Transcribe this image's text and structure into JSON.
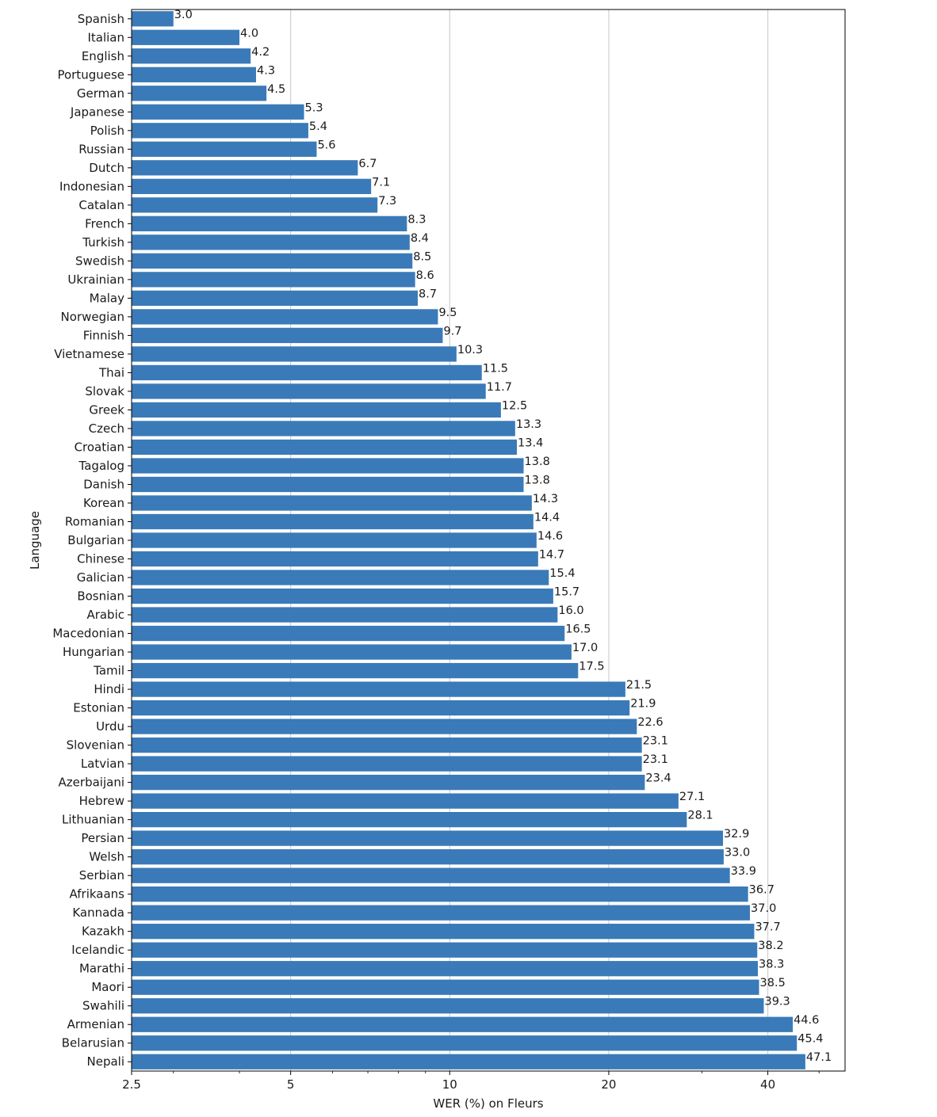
{
  "chart_data": {
    "type": "bar",
    "orientation": "horizontal",
    "xscale": "log",
    "xlabel": "WER (%) on Fleurs",
    "ylabel": "Language",
    "xlim": [
      2.5,
      56
    ],
    "xticks": [
      2.5,
      5,
      10,
      20,
      40
    ],
    "xtick_labels": [
      "2.5",
      "5",
      "10",
      "20",
      "40"
    ],
    "grid": "vertical major gridlines",
    "bar_color": "#3a7ab8",
    "categories": [
      "Spanish",
      "Italian",
      "English",
      "Portuguese",
      "German",
      "Japanese",
      "Polish",
      "Russian",
      "Dutch",
      "Indonesian",
      "Catalan",
      "French",
      "Turkish",
      "Swedish",
      "Ukrainian",
      "Malay",
      "Norwegian",
      "Finnish",
      "Vietnamese",
      "Thai",
      "Slovak",
      "Greek",
      "Czech",
      "Croatian",
      "Tagalog",
      "Danish",
      "Korean",
      "Romanian",
      "Bulgarian",
      "Chinese",
      "Galician",
      "Bosnian",
      "Arabic",
      "Macedonian",
      "Hungarian",
      "Tamil",
      "Hindi",
      "Estonian",
      "Urdu",
      "Slovenian",
      "Latvian",
      "Azerbaijani",
      "Hebrew",
      "Lithuanian",
      "Persian",
      "Welsh",
      "Serbian",
      "Afrikaans",
      "Kannada",
      "Kazakh",
      "Icelandic",
      "Marathi",
      "Maori",
      "Swahili",
      "Armenian",
      "Belarusian",
      "Nepali"
    ],
    "values": [
      3.0,
      4.0,
      4.2,
      4.3,
      4.5,
      5.3,
      5.4,
      5.6,
      6.7,
      7.1,
      7.3,
      8.3,
      8.4,
      8.5,
      8.6,
      8.7,
      9.5,
      9.7,
      10.3,
      11.5,
      11.7,
      12.5,
      13.3,
      13.4,
      13.8,
      13.8,
      14.3,
      14.4,
      14.6,
      14.7,
      15.4,
      15.7,
      16.0,
      16.5,
      17.0,
      17.5,
      21.5,
      21.9,
      22.6,
      23.1,
      23.1,
      23.4,
      27.1,
      28.1,
      32.9,
      33.0,
      33.9,
      36.7,
      37.0,
      37.7,
      38.2,
      38.3,
      38.5,
      39.3,
      44.6,
      45.4,
      47.1
    ],
    "value_labels": [
      "3.0",
      "4.0",
      "4.2",
      "4.3",
      "4.5",
      "5.3",
      "5.4",
      "5.6",
      "6.7",
      "7.1",
      "7.3",
      "8.3",
      "8.4",
      "8.5",
      "8.6",
      "8.7",
      "9.5",
      "9.7",
      "10.3",
      "11.5",
      "11.7",
      "12.5",
      "13.3",
      "13.4",
      "13.8",
      "13.8",
      "14.3",
      "14.4",
      "14.6",
      "14.7",
      "15.4",
      "15.7",
      "16.0",
      "16.5",
      "17.0",
      "17.5",
      "21.5",
      "21.9",
      "22.6",
      "23.1",
      "23.1",
      "23.4",
      "27.1",
      "28.1",
      "32.9",
      "33.0",
      "33.9",
      "36.7",
      "37.0",
      "37.7",
      "38.2",
      "38.3",
      "38.5",
      "39.3",
      "44.6",
      "45.4",
      "47.1"
    ]
  }
}
